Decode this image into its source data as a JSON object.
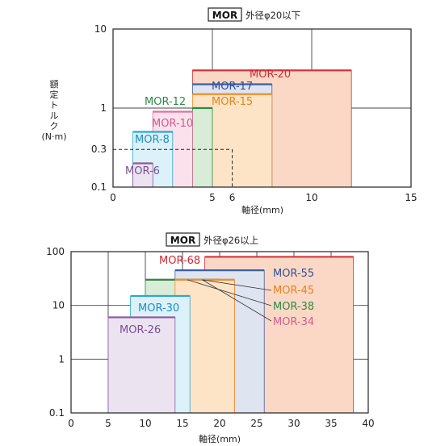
{
  "chart_data": [
    {
      "type": "bar",
      "title_box": "MOR",
      "title_rest": "外径φ20以下",
      "xlabel": "軸径(mm)",
      "ylabel_chars": [
        "額",
        "定",
        "ト",
        "ル",
        "ク"
      ],
      "ylabel_unit": "(N·m)",
      "x_ticks": [
        "0",
        "5",
        "6",
        "10",
        "15"
      ],
      "y_ticks": [
        "0.1",
        "0.3",
        "1",
        "10"
      ],
      "xlim": [
        0,
        15
      ],
      "ylim": [
        0.1,
        10
      ],
      "y_scale": "log",
      "grid": true,
      "guide": {
        "x": 6,
        "y": 0.3
      },
      "series": [
        {
          "name": "MOR-6",
          "x": [
            1,
            2
          ],
          "y": 0.2,
          "stroke": "#8a5a9e",
          "fill": "#ece3f1",
          "text_color": "#7a4f93"
        },
        {
          "name": "MOR-8",
          "x": [
            1,
            3
          ],
          "y": 0.5,
          "stroke": "#2aa7d6",
          "fill": "#dcf1fa",
          "text_color": "#1b8fc2"
        },
        {
          "name": "MOR-10",
          "x": [
            2,
            4
          ],
          "y": 0.9,
          "stroke": "#e0709e",
          "fill": "#fbe1ec",
          "text_color": "#d05c8e"
        },
        {
          "name": "MOR-12",
          "x": [
            4,
            5
          ],
          "y": 1.0,
          "stroke": "#2e8b44",
          "fill": "#d8ecd8",
          "text_color": "#2c8a44"
        },
        {
          "name": "MOR-15",
          "x": [
            4,
            8
          ],
          "y": 1.5,
          "stroke": "#ef8f2a",
          "fill": "#fde4c6",
          "text_color": "#e8821e"
        },
        {
          "name": "MOR-17",
          "x": [
            4,
            8
          ],
          "y": 2.0,
          "stroke": "#3d5fa3",
          "fill": "#dfe4f1",
          "text_color": "#2f5196"
        },
        {
          "name": "MOR-20",
          "x": [
            4,
            12
          ],
          "y": 3.0,
          "stroke": "#d8333a",
          "fill": "#fbd8c6",
          "text_color": "#d12a33"
        }
      ]
    },
    {
      "type": "bar",
      "title_box": "MOR",
      "title_rest": "外径φ26以上",
      "xlabel": "軸径(mm)",
      "x_ticks": [
        "0",
        "5",
        "10",
        "15",
        "20",
        "25",
        "30",
        "35",
        "40"
      ],
      "y_ticks": [
        "0.1",
        "1",
        "10",
        "100"
      ],
      "xlim": [
        0,
        40
      ],
      "ylim": [
        0.1,
        100
      ],
      "y_scale": "log",
      "grid": true,
      "series": [
        {
          "name": "MOR-26",
          "x": [
            5,
            14
          ],
          "y": 6,
          "stroke": "#8a5a9e",
          "fill": "#ece3f1",
          "text_color": "#7a4f93"
        },
        {
          "name": "MOR-30",
          "x": [
            8,
            16
          ],
          "y": 15,
          "stroke": "#2aa7d6",
          "fill": "#dcf1fa",
          "text_color": "#1b8fc2"
        },
        {
          "name": "MOR-34",
          "x": [
            10,
            22
          ],
          "y": 30,
          "stroke": "#e0709e",
          "fill": "#fbe1ec",
          "text_color": "#d05c8e"
        },
        {
          "name": "MOR-38",
          "x": [
            10,
            20
          ],
          "y": 30,
          "stroke": "#2e8b44",
          "fill": "#d8ecd8",
          "text_color": "#2c8a44"
        },
        {
          "name": "MOR-45",
          "x": [
            14,
            22
          ],
          "y": 30,
          "stroke": "#ef8f2a",
          "fill": "#fde4c6",
          "text_color": "#e8821e"
        },
        {
          "name": "MOR-55",
          "x": [
            14,
            26
          ],
          "y": 45,
          "stroke": "#3d5fa3",
          "fill": "#dfe4f1",
          "text_color": "#2f5196"
        },
        {
          "name": "MOR-68",
          "x": [
            18,
            38
          ],
          "y": 80,
          "stroke": "#d8333a",
          "fill": "#fbd8c6",
          "text_color": "#d12a33"
        }
      ]
    }
  ]
}
